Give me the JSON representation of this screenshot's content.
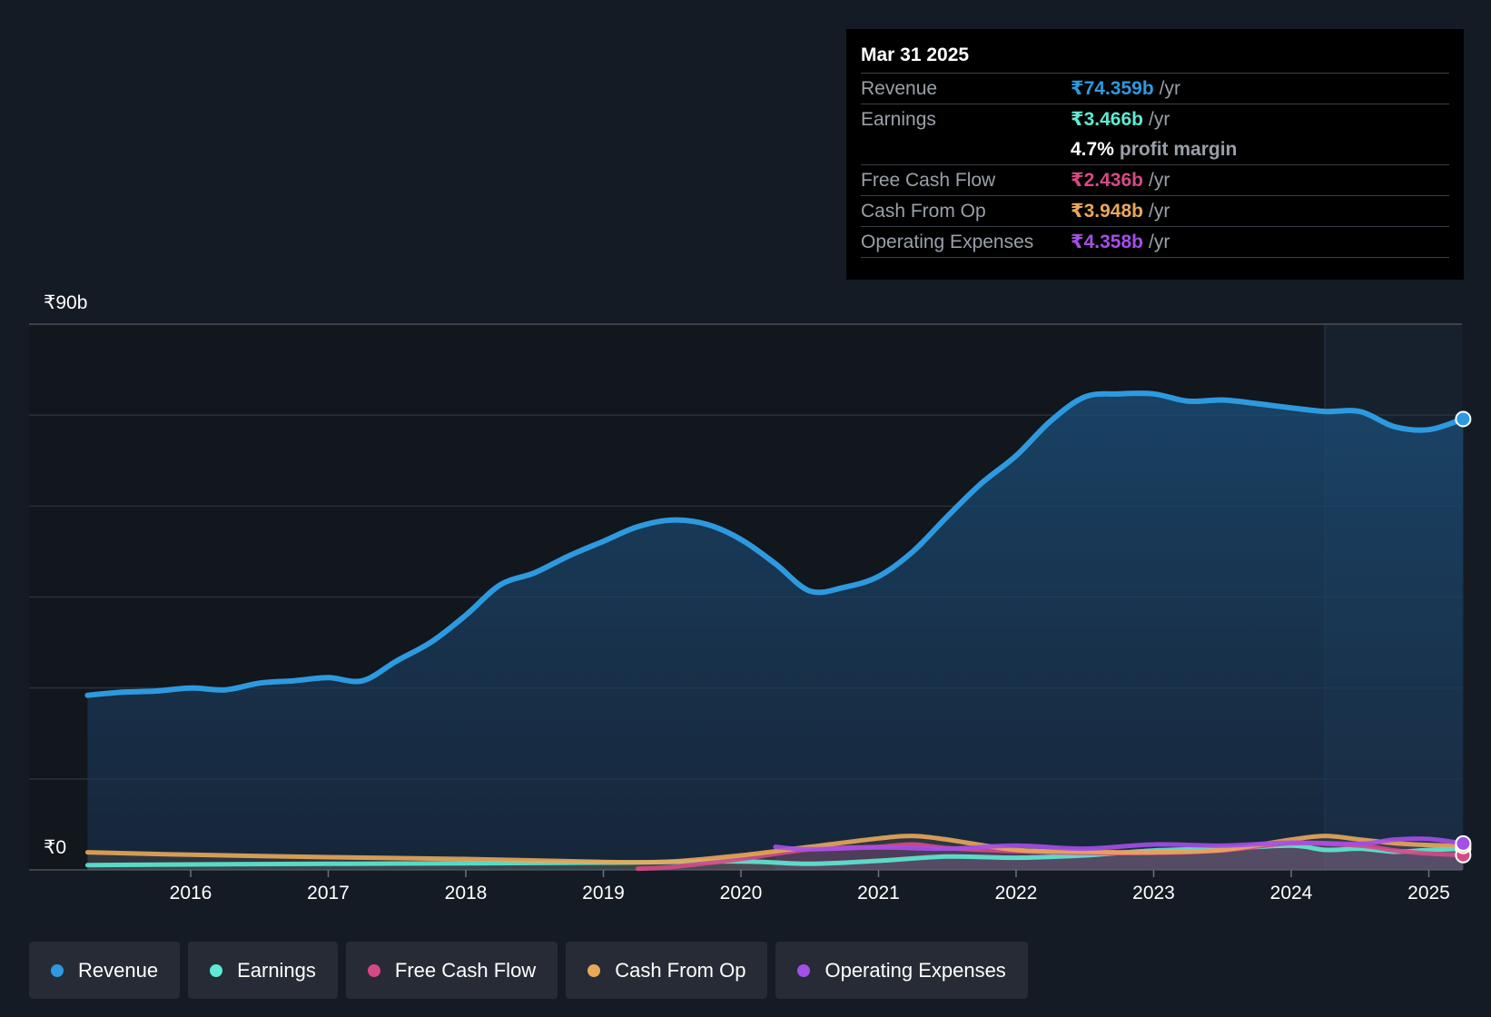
{
  "chart_data": {
    "type": "area",
    "y_axis": {
      "top_label": "₹90b",
      "bottom_label": "₹0",
      "ylim": [
        0,
        90
      ]
    },
    "x_tick_labels": [
      "2016",
      "2017",
      "2018",
      "2019",
      "2020",
      "2021",
      "2022",
      "2023",
      "2024",
      "2025"
    ],
    "series": [
      {
        "name": "Revenue",
        "color": "#2d9ae0",
        "points": [
          [
            2015.25,
            28.8
          ],
          [
            2015.5,
            29.3
          ],
          [
            2015.75,
            29.5
          ],
          [
            2016.0,
            30.0
          ],
          [
            2016.25,
            29.7
          ],
          [
            2016.5,
            30.8
          ],
          [
            2016.75,
            31.2
          ],
          [
            2017.0,
            31.7
          ],
          [
            2017.25,
            31.2
          ],
          [
            2017.5,
            34.5
          ],
          [
            2017.75,
            37.6
          ],
          [
            2018.0,
            42.0
          ],
          [
            2018.25,
            47.0
          ],
          [
            2018.5,
            49.0
          ],
          [
            2018.75,
            51.8
          ],
          [
            2019.0,
            54.2
          ],
          [
            2019.25,
            56.6
          ],
          [
            2019.5,
            57.7
          ],
          [
            2019.75,
            57.0
          ],
          [
            2020.0,
            54.5
          ],
          [
            2020.25,
            50.5
          ],
          [
            2020.5,
            46.0
          ],
          [
            2020.75,
            46.6
          ],
          [
            2021.0,
            48.4
          ],
          [
            2021.25,
            52.5
          ],
          [
            2021.5,
            58.3
          ],
          [
            2021.75,
            63.8
          ],
          [
            2022.0,
            68.3
          ],
          [
            2022.25,
            74.0
          ],
          [
            2022.5,
            78.0
          ],
          [
            2022.75,
            78.5
          ],
          [
            2023.0,
            78.5
          ],
          [
            2023.25,
            77.3
          ],
          [
            2023.5,
            77.5
          ],
          [
            2023.75,
            76.9
          ],
          [
            2024.0,
            76.2
          ],
          [
            2024.25,
            75.6
          ],
          [
            2024.5,
            75.6
          ],
          [
            2024.75,
            73.1
          ],
          [
            2025.0,
            72.6
          ],
          [
            2025.25,
            74.359
          ]
        ]
      },
      {
        "name": "Earnings",
        "color": "#5eead4",
        "points": [
          [
            2015.25,
            0.8
          ],
          [
            2016.0,
            0.9
          ],
          [
            2017.0,
            1.0
          ],
          [
            2018.0,
            1.1
          ],
          [
            2019.0,
            1.2
          ],
          [
            2020.0,
            1.4
          ],
          [
            2020.5,
            1.0
          ],
          [
            2021.0,
            1.5
          ],
          [
            2021.5,
            2.2
          ],
          [
            2022.0,
            2.0
          ],
          [
            2022.5,
            2.4
          ],
          [
            2023.0,
            3.2
          ],
          [
            2023.5,
            3.5
          ],
          [
            2024.0,
            4.0
          ],
          [
            2024.25,
            3.3
          ],
          [
            2024.5,
            3.5
          ],
          [
            2024.75,
            3.0
          ],
          [
            2025.0,
            3.3
          ],
          [
            2025.25,
            3.466
          ]
        ]
      },
      {
        "name": "Free Cash Flow",
        "color": "#d54a86",
        "points": [
          [
            2019.25,
            0.2
          ],
          [
            2019.5,
            0.5
          ],
          [
            2020.0,
            1.8
          ],
          [
            2020.5,
            3.4
          ],
          [
            2021.0,
            3.8
          ],
          [
            2021.25,
            4.2
          ],
          [
            2021.5,
            3.6
          ],
          [
            2022.0,
            3.1
          ],
          [
            2022.5,
            2.8
          ],
          [
            2023.0,
            2.8
          ],
          [
            2023.5,
            3.2
          ],
          [
            2024.0,
            4.4
          ],
          [
            2024.5,
            4.0
          ],
          [
            2024.75,
            3.2
          ],
          [
            2025.0,
            2.7
          ],
          [
            2025.25,
            2.436
          ]
        ]
      },
      {
        "name": "Cash From Op",
        "color": "#e8a85a",
        "points": [
          [
            2015.25,
            2.9
          ],
          [
            2016.0,
            2.5
          ],
          [
            2017.0,
            2.1
          ],
          [
            2018.0,
            1.8
          ],
          [
            2019.0,
            1.3
          ],
          [
            2019.5,
            1.4
          ],
          [
            2020.0,
            2.4
          ],
          [
            2020.5,
            3.8
          ],
          [
            2021.0,
            5.2
          ],
          [
            2021.25,
            5.6
          ],
          [
            2021.5,
            5.0
          ],
          [
            2022.0,
            3.3
          ],
          [
            2022.5,
            3.0
          ],
          [
            2023.0,
            2.9
          ],
          [
            2023.5,
            3.3
          ],
          [
            2024.0,
            5.0
          ],
          [
            2024.25,
            5.6
          ],
          [
            2024.5,
            5.0
          ],
          [
            2024.75,
            4.4
          ],
          [
            2025.0,
            4.1
          ],
          [
            2025.25,
            3.948
          ]
        ]
      },
      {
        "name": "Operating Expenses",
        "color": "#a44fe8",
        "points": [
          [
            2020.25,
            3.8
          ],
          [
            2020.5,
            3.4
          ],
          [
            2021.0,
            3.7
          ],
          [
            2021.5,
            3.5
          ],
          [
            2022.0,
            4.0
          ],
          [
            2022.5,
            3.5
          ],
          [
            2023.0,
            4.2
          ],
          [
            2023.5,
            4.0
          ],
          [
            2024.0,
            4.5
          ],
          [
            2024.5,
            4.3
          ],
          [
            2024.75,
            5.0
          ],
          [
            2025.0,
            5.1
          ],
          [
            2025.25,
            4.358
          ]
        ]
      }
    ]
  },
  "tooltip": {
    "date": "Mar 31 2025",
    "revenue_label": "Revenue",
    "revenue_value": "₹74.359b",
    "revenue_unit": "/yr",
    "earnings_label": "Earnings",
    "earnings_value": "₹3.466b",
    "earnings_unit": "/yr",
    "margin_value": "4.7%",
    "margin_text": "profit margin",
    "fcf_label": "Free Cash Flow",
    "fcf_value": "₹2.436b",
    "fcf_unit": "/yr",
    "cfo_label": "Cash From Op",
    "cfo_value": "₹3.948b",
    "cfo_unit": "/yr",
    "opex_label": "Operating Expenses",
    "opex_value": "₹4.358b",
    "opex_unit": "/yr"
  },
  "legend": [
    {
      "label": "Revenue",
      "color": "#2d9ae0"
    },
    {
      "label": "Earnings",
      "color": "#5eead4"
    },
    {
      "label": "Free Cash Flow",
      "color": "#d54a86"
    },
    {
      "label": "Cash From Op",
      "color": "#e8a85a"
    },
    {
      "label": "Operating Expenses",
      "color": "#a44fe8"
    }
  ]
}
